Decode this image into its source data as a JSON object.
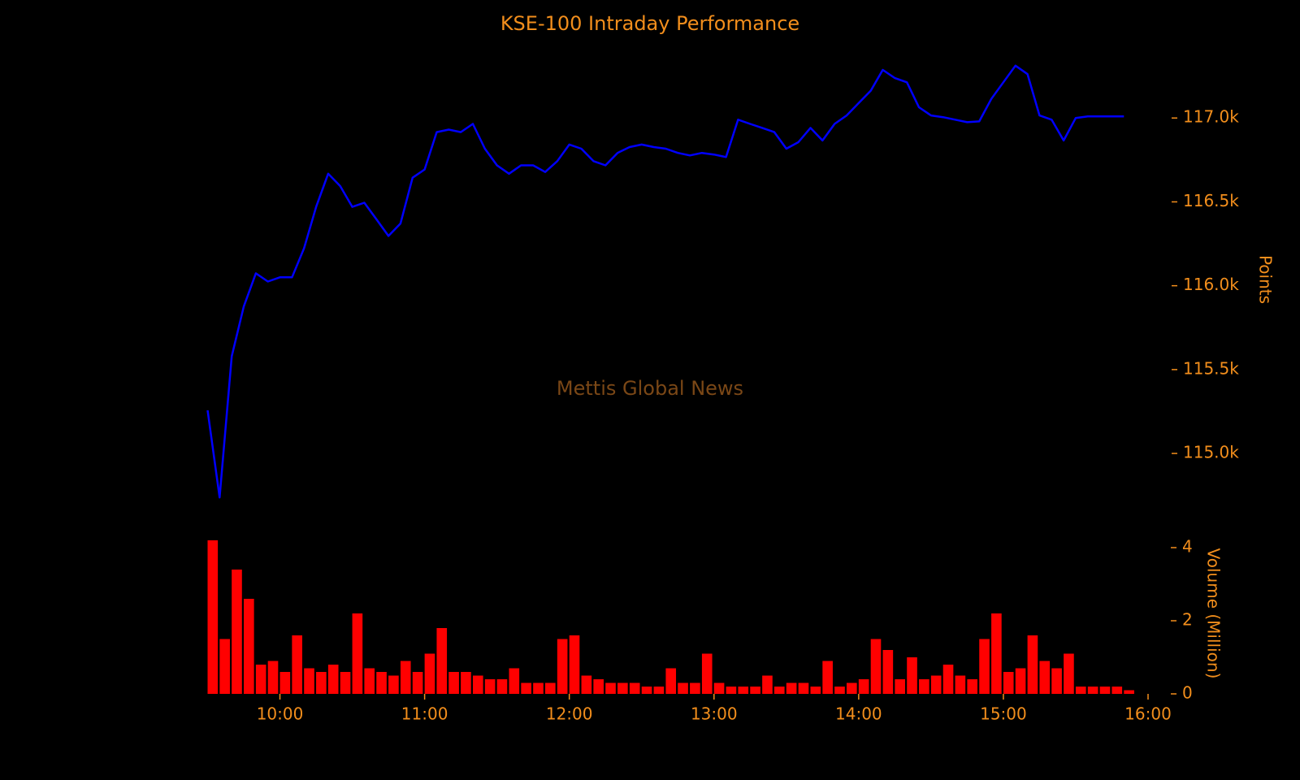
{
  "chart_data": [
    {
      "type": "line",
      "title": "KSE-100 Intraday Performance",
      "ylabel": "Points",
      "annotation": "Mettis Global News",
      "xlim": [
        "09:30",
        "16:00"
      ],
      "ylim": [
        114700,
        117350
      ],
      "yticks": [
        {
          "value": 115000,
          "label": "115.0k"
        },
        {
          "value": 115500,
          "label": "115.5k"
        },
        {
          "value": 116000,
          "label": "116.0k"
        },
        {
          "value": 116500,
          "label": "116.5k"
        },
        {
          "value": 117000,
          "label": "117.0k"
        }
      ],
      "x": [
        "09:30",
        "09:35",
        "09:40",
        "09:45",
        "09:50",
        "09:55",
        "10:00",
        "10:05",
        "10:10",
        "10:15",
        "10:20",
        "10:25",
        "10:30",
        "10:35",
        "10:40",
        "10:45",
        "10:50",
        "10:55",
        "11:00",
        "11:05",
        "11:10",
        "11:15",
        "11:20",
        "11:25",
        "11:30",
        "11:35",
        "11:40",
        "11:45",
        "11:50",
        "11:55",
        "12:00",
        "12:05",
        "12:10",
        "12:15",
        "12:20",
        "12:25",
        "12:30",
        "12:35",
        "12:40",
        "12:45",
        "12:50",
        "12:55",
        "13:00",
        "13:05",
        "13:10",
        "13:15",
        "13:20",
        "13:25",
        "13:30",
        "13:35",
        "13:40",
        "13:45",
        "13:50",
        "13:55",
        "14:00",
        "14:05",
        "14:10",
        "14:15",
        "14:20",
        "14:25",
        "14:30",
        "14:35",
        "14:40",
        "14:45",
        "14:50",
        "14:55",
        "15:00",
        "15:05",
        "15:10",
        "15:15",
        "15:20",
        "15:25",
        "15:30",
        "15:35",
        "15:40",
        "15:45",
        "15:50"
      ],
      "series": [
        {
          "color": "#0000ff",
          "values": [
            115257,
            114738,
            115579,
            115876,
            116074,
            116025,
            116050,
            116050,
            116223,
            116470,
            116668,
            116594,
            116470,
            116495,
            116396,
            116297,
            116371,
            116644,
            116693,
            116916,
            116931,
            116916,
            116965,
            116817,
            116718,
            116668,
            116718,
            116718,
            116678,
            116743,
            116842,
            116817,
            116743,
            116718,
            116792,
            116827,
            116842,
            116827,
            116817,
            116792,
            116777,
            116792,
            116782,
            116767,
            116990,
            116965,
            116941,
            116916,
            116817,
            116856,
            116941,
            116866,
            116965,
            117015,
            117089,
            117163,
            117287,
            117238,
            117213,
            117064,
            117015,
            117005,
            116990,
            116975,
            116980,
            117114,
            117213,
            117312,
            117262,
            117015,
            116990,
            116866,
            117000,
            117010,
            117010,
            117010,
            117010
          ]
        }
      ]
    },
    {
      "type": "bar",
      "ylabel": "Volume (Million)",
      "xlim": [
        "09:30",
        "16:00"
      ],
      "xticks": [
        "10:00",
        "11:00",
        "12:00",
        "13:00",
        "14:00",
        "15:00",
        "16:00"
      ],
      "ylim": [
        0,
        4.2
      ],
      "yticks": [
        0,
        2,
        4
      ],
      "x": [
        "09:30",
        "09:35",
        "09:40",
        "09:45",
        "09:50",
        "09:55",
        "10:00",
        "10:05",
        "10:10",
        "10:15",
        "10:20",
        "10:25",
        "10:30",
        "10:35",
        "10:40",
        "10:45",
        "10:50",
        "10:55",
        "11:00",
        "11:05",
        "11:10",
        "11:15",
        "11:20",
        "11:25",
        "11:30",
        "11:35",
        "11:40",
        "11:45",
        "11:50",
        "11:55",
        "12:00",
        "12:05",
        "12:10",
        "12:15",
        "12:20",
        "12:25",
        "12:30",
        "12:35",
        "12:40",
        "12:45",
        "12:50",
        "12:55",
        "13:00",
        "13:05",
        "13:10",
        "13:15",
        "13:20",
        "13:25",
        "13:30",
        "13:35",
        "13:40",
        "13:45",
        "13:50",
        "13:55",
        "14:00",
        "14:05",
        "14:10",
        "14:15",
        "14:20",
        "14:25",
        "14:30",
        "14:35",
        "14:40",
        "14:45",
        "14:50",
        "14:55",
        "15:00",
        "15:05",
        "15:10",
        "15:15",
        "15:20",
        "15:25",
        "15:30",
        "15:35",
        "15:40",
        "15:45",
        "15:50"
      ],
      "series": [
        {
          "color": "#ff0000",
          "values": [
            4.2,
            1.5,
            3.4,
            2.6,
            0.8,
            0.9,
            0.6,
            1.6,
            0.7,
            0.6,
            0.8,
            0.6,
            2.2,
            0.7,
            0.6,
            0.5,
            0.9,
            0.6,
            1.1,
            1.8,
            0.6,
            0.6,
            0.5,
            0.4,
            0.4,
            0.7,
            0.3,
            0.3,
            0.3,
            1.5,
            1.6,
            0.5,
            0.4,
            0.3,
            0.3,
            0.3,
            0.2,
            0.2,
            0.7,
            0.3,
            0.3,
            1.1,
            0.3,
            0.2,
            0.2,
            0.2,
            0.5,
            0.2,
            0.3,
            0.3,
            0.2,
            0.9,
            0.2,
            0.3,
            0.4,
            1.5,
            1.2,
            0.4,
            1.0,
            0.4,
            0.5,
            0.8,
            0.5,
            0.4,
            1.5,
            2.2,
            0.6,
            0.7,
            1.6,
            0.9,
            0.7,
            1.1,
            0.2,
            0.2,
            0.2,
            0.2,
            0.1
          ]
        }
      ]
    }
  ]
}
